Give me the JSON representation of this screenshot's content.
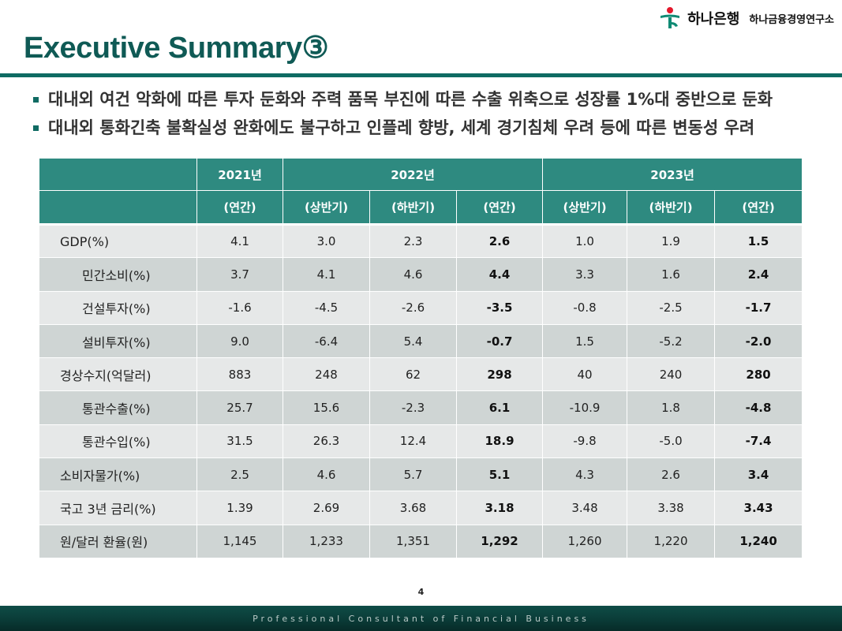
{
  "header": {
    "bank_name": "하나은행",
    "institute_name": "하나금융경영연구소",
    "title": "Executive Summary③"
  },
  "bullets": [
    "대내외 여건 악화에 따른 투자 둔화와 주력 품목 부진에 따른 수출 위축으로 성장률 1%대 중반으로 둔화",
    "대내외 통화긴축 불확실성 완화에도 불구하고 인플레 향방, 세계 경기침체 우려 등에 따른 변동성 우려"
  ],
  "table": {
    "years": [
      "2021년",
      "2022년",
      "2023년"
    ],
    "periods": [
      "(연간)",
      "(상반기)",
      "(하반기)",
      "(연간)",
      "(상반기)",
      "(하반기)",
      "(연간)"
    ],
    "rows": [
      {
        "label": "GDP(%)",
        "indent": 1,
        "values": [
          "4.1",
          "3.0",
          "2.3",
          "2.6",
          "1.0",
          "1.9",
          "1.5"
        ]
      },
      {
        "label": "민간소비(%)",
        "indent": 2,
        "values": [
          "3.7",
          "4.1",
          "4.6",
          "4.4",
          "3.3",
          "1.6",
          "2.4"
        ]
      },
      {
        "label": "건설투자(%)",
        "indent": 2,
        "values": [
          "-1.6",
          "-4.5",
          "-2.6",
          "-3.5",
          "-0.8",
          "-2.5",
          "-1.7"
        ]
      },
      {
        "label": "설비투자(%)",
        "indent": 2,
        "values": [
          "9.0",
          "-6.4",
          "5.4",
          "-0.7",
          "1.5",
          "-5.2",
          "-2.0"
        ]
      },
      {
        "label": "경상수지(억달러)",
        "indent": 1,
        "values": [
          "883",
          "248",
          "62",
          "298",
          "40",
          "240",
          "280"
        ]
      },
      {
        "label": "통관수출(%)",
        "indent": 2,
        "values": [
          "25.7",
          "15.6",
          "-2.3",
          "6.1",
          "-10.9",
          "1.8",
          "-4.8"
        ]
      },
      {
        "label": "통관수입(%)",
        "indent": 2,
        "values": [
          "31.5",
          "26.3",
          "12.4",
          "18.9",
          "-9.8",
          "-5.0",
          "-7.4"
        ]
      },
      {
        "label": "소비자물가(%)",
        "indent": 1,
        "values": [
          "2.5",
          "4.6",
          "5.7",
          "5.1",
          "4.3",
          "2.6",
          "3.4"
        ]
      },
      {
        "label": "국고 3년 금리(%)",
        "indent": 1,
        "values": [
          "1.39",
          "2.69",
          "3.68",
          "3.18",
          "3.48",
          "3.38",
          "3.43"
        ]
      },
      {
        "label": "원/달러 환율(원)",
        "indent": 1,
        "values": [
          "1,145",
          "1,233",
          "1,351",
          "1,292",
          "1,260",
          "1,220",
          "1,240"
        ]
      }
    ]
  },
  "footer": {
    "page_number": "4",
    "tagline": "Professional Consultant of Financial Business"
  },
  "colors": {
    "brand_teal": "#0f6b63",
    "header_cell": "#2e8a80",
    "row_light": "#e6e8e8",
    "row_dark": "#cfd5d4",
    "title_text": "#0f5a55",
    "logo_red": "#e4172b"
  }
}
